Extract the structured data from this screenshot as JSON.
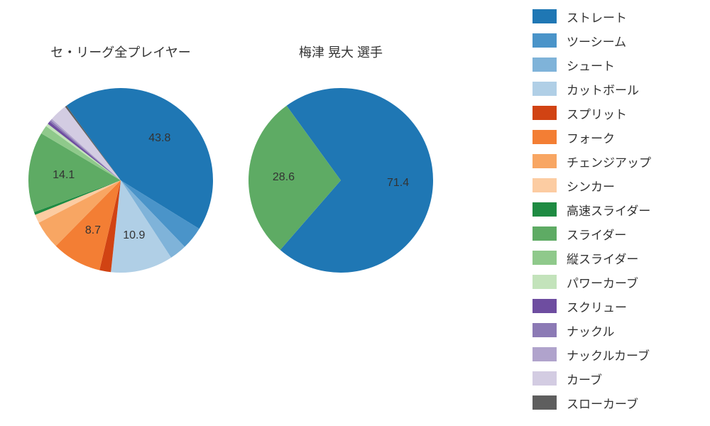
{
  "background_color": "#ffffff",
  "text_color": "#333333",
  "title_fontsize": 18,
  "label_fontsize": 16,
  "legend_fontsize": 17,
  "legend": {
    "items": [
      {
        "label": "ストレート",
        "color": "#1f77b4"
      },
      {
        "label": "ツーシーム",
        "color": "#4a94c9"
      },
      {
        "label": "シュート",
        "color": "#7fb3d9"
      },
      {
        "label": "カットボール",
        "color": "#b0cfe6"
      },
      {
        "label": "スプリット",
        "color": "#d14313"
      },
      {
        "label": "フォーク",
        "color": "#f37e34"
      },
      {
        "label": "チェンジアップ",
        "color": "#f8a663"
      },
      {
        "label": "シンカー",
        "color": "#fccca2"
      },
      {
        "label": "高速スライダー",
        "color": "#1e8b42"
      },
      {
        "label": "スライダー",
        "color": "#5eab64"
      },
      {
        "label": "縦スライダー",
        "color": "#8fc98b"
      },
      {
        "label": "パワーカーブ",
        "color": "#c3e3bb"
      },
      {
        "label": "スクリュー",
        "color": "#6e4da0"
      },
      {
        "label": "ナックル",
        "color": "#8c7ab5"
      },
      {
        "label": "ナックルカーブ",
        "color": "#b0a3cc"
      },
      {
        "label": "カーブ",
        "color": "#d3cce2"
      },
      {
        "label": "スローカーブ",
        "color": "#5e5e5e"
      }
    ]
  },
  "charts": [
    {
      "title": "セ・リーグ全プレイヤー",
      "type": "pie",
      "radius": 130,
      "start_angle_deg": -36,
      "label_threshold": 8,
      "slices": [
        {
          "name": "ストレート",
          "value": 43.8,
          "color": "#1f77b4",
          "label": "43.8"
        },
        {
          "name": "ツーシーム",
          "value": 4.0,
          "color": "#4a94c9"
        },
        {
          "name": "シュート",
          "value": 3.0,
          "color": "#7fb3d9"
        },
        {
          "name": "カットボール",
          "value": 10.9,
          "color": "#b0cfe6",
          "label": "10.9"
        },
        {
          "name": "スプリット",
          "value": 2.0,
          "color": "#d14313"
        },
        {
          "name": "フォーク",
          "value": 8.7,
          "color": "#f37e34",
          "label": "8.7"
        },
        {
          "name": "チェンジアップ",
          "value": 5.0,
          "color": "#f8a663"
        },
        {
          "name": "シンカー",
          "value": 1.5,
          "color": "#fccca2"
        },
        {
          "name": "高速スライダー",
          "value": 0.5,
          "color": "#1e8b42"
        },
        {
          "name": "スライダー",
          "value": 14.1,
          "color": "#5eab64",
          "label": "14.1"
        },
        {
          "name": "縦スライダー",
          "value": 1.5,
          "color": "#8fc98b"
        },
        {
          "name": "パワーカーブ",
          "value": 0.5,
          "color": "#c3e3bb"
        },
        {
          "name": "スクリュー",
          "value": 0.5,
          "color": "#6e4da0"
        },
        {
          "name": "ナックル",
          "value": 0.3,
          "color": "#8c7ab5"
        },
        {
          "name": "ナックルカーブ",
          "value": 0.3,
          "color": "#b0a3cc"
        },
        {
          "name": "カーブ",
          "value": 3.1,
          "color": "#d3cce2"
        },
        {
          "name": "スローカーブ",
          "value": 0.3,
          "color": "#5e5e5e"
        }
      ]
    },
    {
      "title": "梅津 晃大  選手",
      "type": "pie",
      "radius": 130,
      "start_angle_deg": -36,
      "label_threshold": 8,
      "slices": [
        {
          "name": "ストレート",
          "value": 71.4,
          "color": "#1f77b4",
          "label": "71.4"
        },
        {
          "name": "スライダー",
          "value": 28.6,
          "color": "#5eab64",
          "label": "28.6"
        }
      ]
    }
  ]
}
